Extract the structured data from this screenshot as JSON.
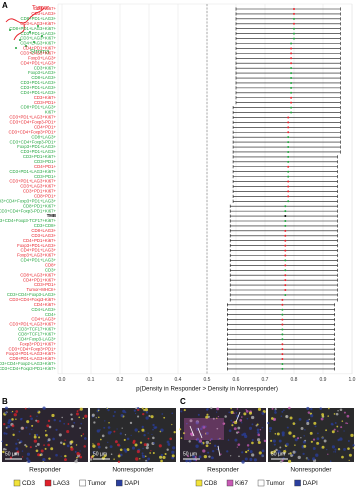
{
  "panels": {
    "a": "A",
    "b": "B",
    "c": "C"
  },
  "inset": {
    "tumor": "Tumor",
    "stroma": "Stroma"
  },
  "chart_data": {
    "type": "forest",
    "x_label": "p(Density in Responder > Density in Nonresponder)",
    "categories": [
      "CD8+Ki67+",
      "CD3+LAG3+",
      "CD8+PD1+LAG3+",
      "CD3+LAG3+Ki67+",
      "CD8+PD1+LAG3+Ki67+",
      "CD3+PD1+LAG3+",
      "CD3+LAG3+Ki67+",
      "CD4+LAG3+Ki67+",
      "CD4+PD1+Ki67+",
      "CD3+LAG3+Ki67+",
      "Foxp3+LAG3+",
      "CD4+PD1+LAG3+",
      "CD3+Ki67+",
      "Foxp3+LAG3+",
      "CD8+LAG3+",
      "CD3+PD1+LAG3+",
      "CD3+PD1+LAG3+",
      "CD4+PD1+LAG3+",
      "CD3+Ki67+",
      "CD3+PD1+",
      "CD8+PD1+LAG3+",
      "Ki67+",
      "CD3+PD1+LAG3+Ki67+",
      "CD3+CD4+Foxp3-PD1+",
      "CD4+PD1+",
      "CD3+CD4+Foxp3+PD1+",
      "CD8+LAG3+",
      "CD3+CD4+Foxp3-PD1+",
      "Foxp3+PD1+LAG3+",
      "CD3+PD1+LAG3+",
      "CD3+PD1+Ki67+",
      "CD3+PD1+",
      "CD4+PD1+",
      "CD3+PD1+LAG3+Ki67+",
      "CD3+PD1+",
      "CD3+PD1+LAG3+Ki67+",
      "CD3+LAG3+Ki67+",
      "CD3+PD1+Ki67+",
      "CD8+PD1+",
      "CD3+CD4+Foxp3+PD1+LAG3+",
      "CD8+PD1+Ki67+",
      "CD3+CD4+Foxp3-PD1+Ki67+",
      "TMB",
      "CD3+CD4+Foxp3-TCF17+Ki67+",
      "CD3+CD8+",
      "CD8+LAG3+",
      "CD3+LAG3+",
      "CD4+PD1+Ki67+",
      "Foxp3+PD1+LAG3+",
      "CD4+PD1+LAG3+",
      "Foxp3+LAG3+Ki67+",
      "CD4+PD1+LAG3+",
      "CD8+",
      "CD3+",
      "CD8+LAG3+Ki67+",
      "CD4+PD1+Ki67+",
      "CD3+PD1+",
      "Tumor+MHCII+",
      "CD3+CD4+Foxp3-LAG3+",
      "CD3+CD4+Foxp3-Ki67+",
      "CD4+Ki67+",
      "CD4+LAG3+",
      "CD4+",
      "CD4+LAG3+",
      "CD3+PD1+LAG3+Ki67+",
      "CD3+TCF17+Ki67+",
      "CD8+TCF17+Ki67+",
      "CD4+Foxp3-LAG3+",
      "Foxp3+PD1+Ki67+",
      "CD3+CD4+Foxp3+PD1+",
      "Foxp3+PD1+LAG3+Ki67+",
      "CD8+PD1+LAG3+Ki67+",
      "CD3+CD4+Foxp2-LAG3+Ki67+",
      "CD3+CD4+Foxp3-PD1+Ki67+"
    ],
    "label_colors": [
      "#e8212a",
      "#e8212a",
      "#1fa33b",
      "#e8212a",
      "#1fa33b",
      "#1fa33b",
      "#1fa33b",
      "#1fa33b",
      "#e8212a",
      "#e8212a",
      "#e8212a",
      "#e8212a",
      "#1fa33b",
      "#1fa33b",
      "#1fa33b",
      "#1fa33b",
      "#1fa33b",
      "#1fa33b",
      "#e8212a",
      "#e8212a",
      "#1fa33b",
      "#1fa33b",
      "#e8212a",
      "#e8212a",
      "#e8212a",
      "#e8212a",
      "#1fa33b",
      "#1fa33b",
      "#1fa33b",
      "#1fa33b",
      "#1fa33b",
      "#1fa33b",
      "#e8212a",
      "#1fa33b",
      "#1fa33b",
      "#e8212a",
      "#e8212a",
      "#e8212a",
      "#e8212a",
      "#1fa33b",
      "#1fa33b",
      "#1fa33b",
      "#000000",
      "#1fa33b",
      "#1fa33b",
      "#e8212a",
      "#e8212a",
      "#e8212a",
      "#e8212a",
      "#e8212a",
      "#e8212a",
      "#1fa33b",
      "#e8212a",
      "#1fa33b",
      "#e8212a",
      "#e8212a",
      "#e8212a",
      "#e8212a",
      "#1fa33b",
      "#e8212a",
      "#e8212a",
      "#1fa33b",
      "#1fa33b",
      "#e8212a",
      "#e8212a",
      "#1fa33b",
      "#1fa33b",
      "#1fa33b",
      "#e8212a",
      "#e8212a",
      "#e8212a",
      "#e8212a",
      "#1fa33b",
      "#1fa33b"
    ],
    "values": [
      0.8,
      0.8,
      0.8,
      0.8,
      0.8,
      0.8,
      0.8,
      0.79,
      0.79,
      0.79,
      0.79,
      0.79,
      0.79,
      0.79,
      0.79,
      0.79,
      0.79,
      0.79,
      0.79,
      0.79,
      0.79,
      0.79,
      0.78,
      0.78,
      0.78,
      0.78,
      0.78,
      0.78,
      0.78,
      0.78,
      0.78,
      0.78,
      0.78,
      0.78,
      0.78,
      0.78,
      0.78,
      0.78,
      0.78,
      0.78,
      0.77,
      0.77,
      0.77,
      0.77,
      0.77,
      0.77,
      0.77,
      0.77,
      0.77,
      0.77,
      0.77,
      0.77,
      0.77,
      0.77,
      0.77,
      0.77,
      0.77,
      0.77,
      0.77,
      0.76,
      0.76,
      0.76,
      0.76,
      0.76,
      0.76,
      0.76,
      0.76,
      0.76,
      0.76,
      0.76,
      0.76,
      0.76,
      0.76,
      0.76
    ],
    "ci_low": [
      0.6,
      0.6,
      0.6,
      0.6,
      0.6,
      0.6,
      0.6,
      0.6,
      0.6,
      0.6,
      0.6,
      0.6,
      0.6,
      0.6,
      0.6,
      0.6,
      0.6,
      0.6,
      0.6,
      0.6,
      0.59,
      0.59,
      0.59,
      0.59,
      0.59,
      0.59,
      0.59,
      0.59,
      0.59,
      0.59,
      0.59,
      0.59,
      0.59,
      0.59,
      0.59,
      0.59,
      0.59,
      0.59,
      0.59,
      0.59,
      0.58,
      0.58,
      0.58,
      0.58,
      0.58,
      0.58,
      0.58,
      0.58,
      0.58,
      0.58,
      0.58,
      0.58,
      0.58,
      0.58,
      0.58,
      0.58,
      0.58,
      0.58,
      0.58,
      0.58,
      0.57,
      0.57,
      0.57,
      0.57,
      0.57,
      0.57,
      0.57,
      0.57,
      0.57,
      0.57,
      0.57,
      0.57,
      0.57,
      0.57
    ],
    "ci_high": [
      0.96,
      0.96,
      0.96,
      0.96,
      0.96,
      0.96,
      0.96,
      0.96,
      0.96,
      0.96,
      0.96,
      0.96,
      0.96,
      0.96,
      0.96,
      0.96,
      0.96,
      0.96,
      0.96,
      0.96,
      0.96,
      0.96,
      0.96,
      0.96,
      0.96,
      0.96,
      0.96,
      0.96,
      0.96,
      0.96,
      0.95,
      0.95,
      0.95,
      0.95,
      0.95,
      0.95,
      0.95,
      0.95,
      0.95,
      0.95,
      0.95,
      0.95,
      0.95,
      0.95,
      0.95,
      0.95,
      0.95,
      0.95,
      0.95,
      0.95,
      0.95,
      0.95,
      0.95,
      0.95,
      0.95,
      0.95,
      0.95,
      0.95,
      0.95,
      0.95,
      0.94,
      0.94,
      0.94,
      0.94,
      0.94,
      0.94,
      0.94,
      0.94,
      0.94,
      0.94,
      0.94,
      0.94,
      0.94,
      0.94
    ],
    "xlim": [
      0,
      1
    ],
    "xticks": [
      {
        "value": 0,
        "label": "0.0"
      },
      0.1,
      0.2,
      0.3,
      0.4,
      0.5,
      0.6,
      0.7,
      0.8,
      0.9,
      {
        "value": 1,
        "label": "1.0"
      }
    ],
    "reference_line": 0.5,
    "grid": true
  },
  "images": {
    "b": {
      "responder": "Responder",
      "nonresponder": "Nonresponder",
      "scale": "50 µm",
      "legend": [
        {
          "label": "CD3",
          "color": "#f2e33a"
        },
        {
          "label": "LAG3",
          "color": "#e0202a"
        },
        {
          "label": "Tumor",
          "color": "#ffffff"
        },
        {
          "label": "DAPI",
          "color": "#2a3f9e"
        }
      ]
    },
    "c": {
      "responder": "Responder",
      "nonresponder": "Nonresponder",
      "scale": "50 µm",
      "legend": [
        {
          "label": "CD8",
          "color": "#f2e33a"
        },
        {
          "label": "Ki67",
          "color": "#c85ab5"
        },
        {
          "label": "Tumor",
          "color": "#ffffff"
        },
        {
          "label": "DAPI",
          "color": "#2a3f9e"
        }
      ]
    }
  }
}
